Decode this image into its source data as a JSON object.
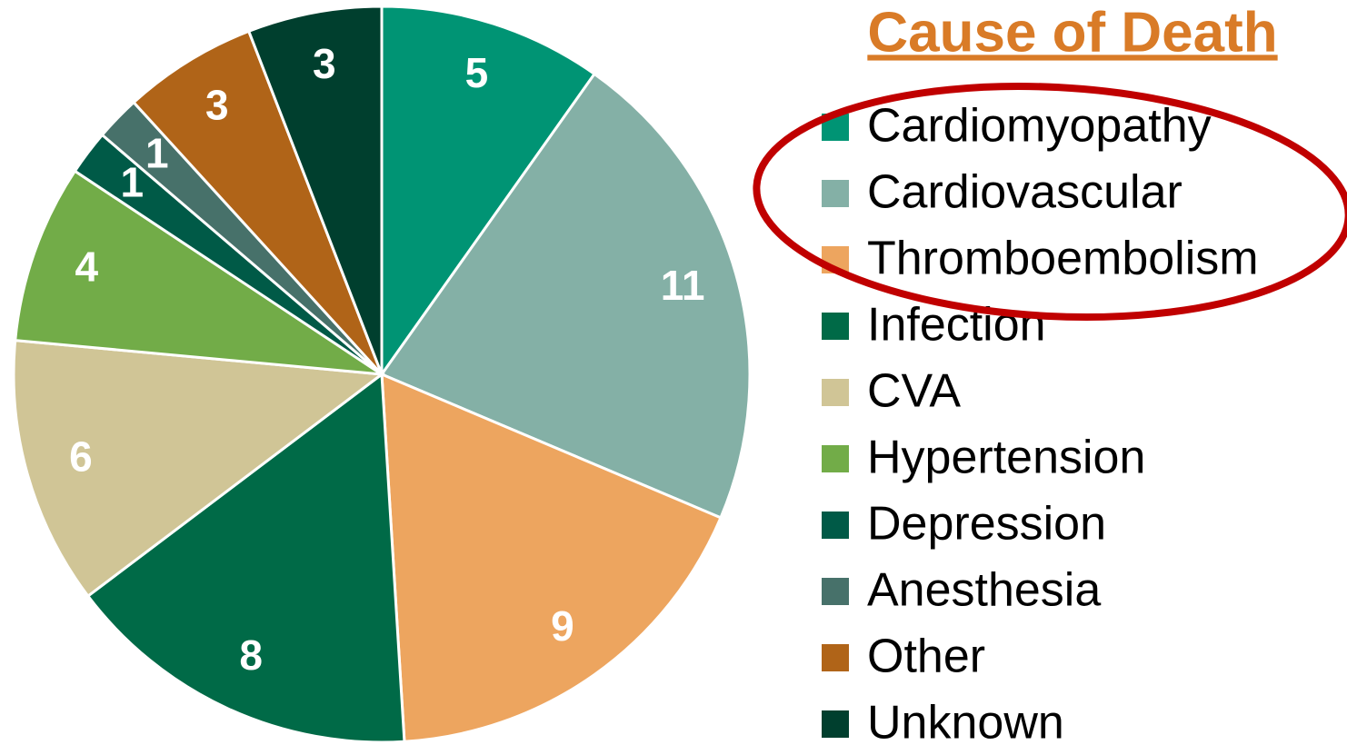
{
  "chart_data": {
    "type": "pie",
    "title": "Cause of Death",
    "categories": [
      "Cardiomyopathy",
      "Cardiovascular",
      "Thromboembolism",
      "Infection",
      "CVA",
      "Hypertension",
      "Depression",
      "Anesthesia",
      "Other",
      "Unknown"
    ],
    "values": [
      5,
      11,
      9,
      8,
      6,
      4,
      1,
      1,
      3,
      3
    ],
    "colors": [
      "#009474",
      "#84b0a6",
      "#eda55f",
      "#006a47",
      "#d0c596",
      "#72ac48",
      "#005a47",
      "#47716a",
      "#b06418",
      "#003f2e"
    ],
    "legend": "right"
  }
}
